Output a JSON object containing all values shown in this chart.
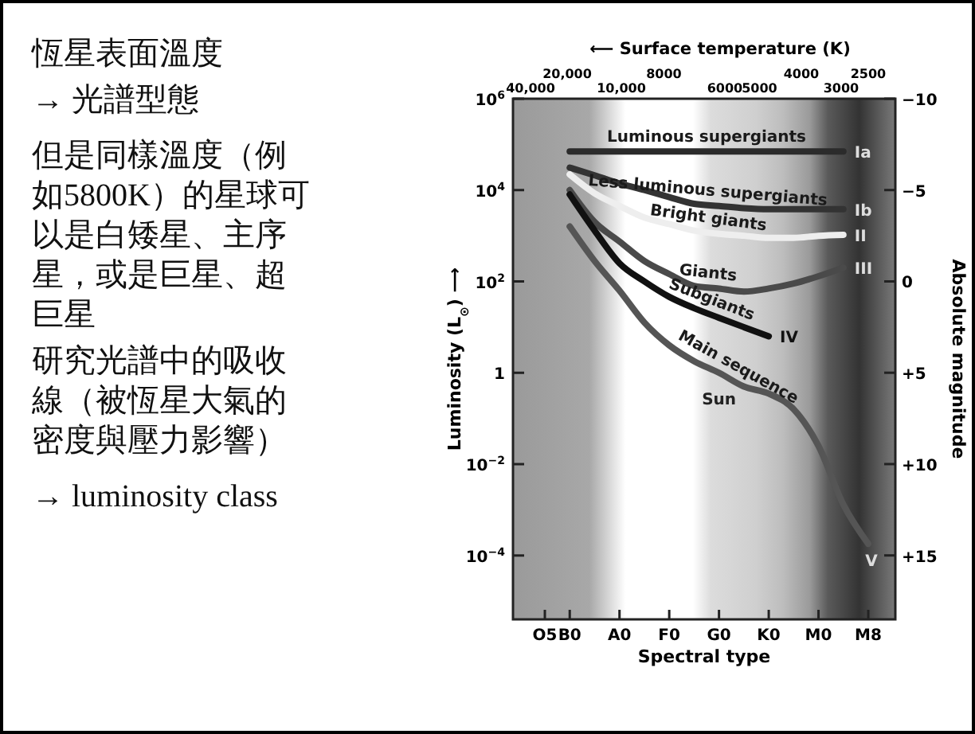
{
  "chart_data": {
    "type": "line",
    "xlabel": "Spectral type",
    "ylabel": "Luminosity (L$_{⊙}$) ⟶",
    "y2label": "Absolute magnitude",
    "x2label": "⟵ Surface temperature (K)",
    "annotations": [
      "恆星表面溫度",
      "→ 光譜型態",
      "但是同樣溫度（例如5800K）的星球可以是白矮星、主序星，或是巨星、超巨星",
      "研究光譜中的吸收線（被恆星大氣的密度與壓力影響）",
      "→ luminosity class",
      "40,000",
      "20,000",
      "10,000",
      "8000",
      "6000",
      "5000",
      "4000",
      "3000",
      "2500",
      "Ia",
      "Ib",
      "II",
      "III",
      "IV",
      "V",
      {
        "text": "Sun",
        "x": "G0",
        "y": 1
      }
    ],
    "categories": [
      "O5",
      "B0",
      null,
      "A0",
      null,
      "F0",
      null,
      "G0",
      null,
      "K0",
      null,
      "M0",
      null,
      "M8"
    ],
    "log": "y",
    "ylim": [
      4e-06,
      1000000
    ],
    "yticks": [
      {
        "value": 0.0001,
        "label": "10$^{−4}$"
      },
      {
        "value": 0.01,
        "label": "10$^{−2}$"
      },
      {
        "value": 1,
        "label": "1"
      },
      {
        "value": 100,
        "label": "10$^{2}$"
      },
      {
        "value": 10000,
        "label": "10$^{4}$"
      },
      {
        "value": 1000000,
        "label": "10$^{6}$"
      }
    ],
    "y2lim": [
      18.5,
      -10
    ],
    "y2ticks": [
      {
        "value": -10,
        "label": "−10"
      },
      {
        "value": -5,
        "label": "−5"
      },
      {
        "value": 0,
        "label": "0"
      },
      {
        "value": 5,
        "label": "+5"
      },
      {
        "value": 10,
        "label": "+10"
      },
      {
        "value": 15,
        "label": "+15"
      }
    ],
    "grid": false,
    "legend": false,
    "marker": "none",
    "line_style": "solid",
    "series": [
      {
        "name": "Luminous supergiants",
        "color": "#2b2b2b",
        "values": [
          null,
          70000,
          70000,
          70000,
          70000,
          70000,
          70000,
          70000,
          70000,
          70000,
          70000,
          70000,
          70000,
          null
        ]
      },
      {
        "name": "Less luminous supergiants",
        "color": "#333333",
        "values": [
          null,
          31000,
          21000,
          14000,
          10000,
          7000,
          5000,
          4500,
          4000,
          3800,
          3800,
          3800,
          3800,
          null
        ]
      },
      {
        "name": "Bright giants",
        "color": "#eeeeee",
        "values": [
          null,
          22000,
          8500,
          4500,
          2500,
          1800,
          1300,
          1100,
          1000,
          900,
          900,
          1000,
          1050,
          null
        ]
      },
      {
        "name": "Giants",
        "color": "#4a4a4a",
        "values": [
          null,
          10000,
          2000,
          750,
          280,
          145,
          80,
          70,
          60,
          70,
          90,
          130,
          200,
          null
        ]
      },
      {
        "name": "Subgiants",
        "color": "#111111",
        "values": [
          null,
          8000,
          1300,
          250,
          100,
          46,
          26,
          16,
          10,
          6.3,
          null,
          null,
          null,
          null
        ]
      },
      {
        "name": "Main sequence",
        "color": "#555555",
        "values": [
          null,
          1600,
          280,
          63,
          12.6,
          4,
          1.8,
          1,
          0.5,
          0.35,
          0.16,
          0.025,
          0.0013,
          0.00018
        ]
      }
    ]
  }
}
